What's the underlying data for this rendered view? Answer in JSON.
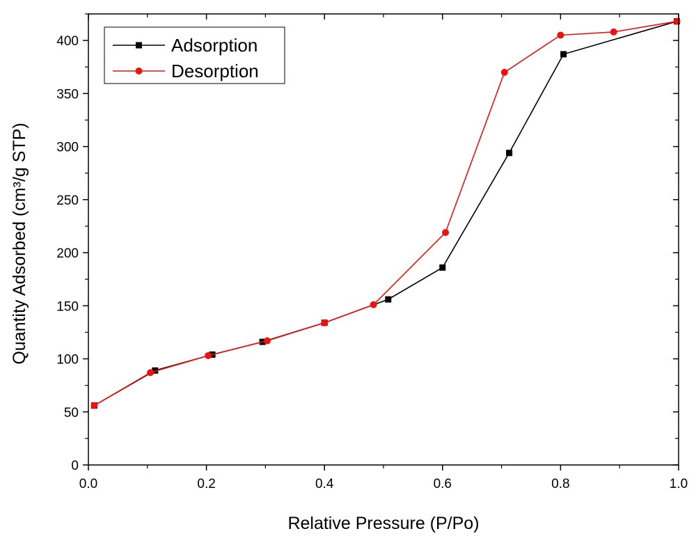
{
  "chart_data": {
    "type": "line",
    "title": "",
    "xlabel": "Relative Pressure (P/Po)",
    "ylabel": "Quantity Adsorbed (cm³/g STP)",
    "xlim": [
      0.0,
      1.0
    ],
    "ylim": [
      0,
      425
    ],
    "xticks": [
      "0.0",
      "0.2",
      "0.4",
      "0.6",
      "0.8",
      "1.0"
    ],
    "yticks": [
      "0",
      "50",
      "100",
      "150",
      "200",
      "250",
      "300",
      "350",
      "400"
    ],
    "grid": false,
    "legend_position": "top-left",
    "series": [
      {
        "name": "Adsorption",
        "color": "#000000",
        "marker": "square",
        "x": [
          0.01,
          0.113,
          0.21,
          0.295,
          0.4,
          0.508,
          0.6,
          0.713,
          0.805,
          0.997
        ],
        "y": [
          56,
          89,
          104,
          116,
          134,
          156,
          186,
          294,
          387,
          418
        ]
      },
      {
        "name": "Desorption",
        "color": "#ee1111",
        "marker": "circle",
        "x": [
          0.01,
          0.105,
          0.203,
          0.303,
          0.4,
          0.483,
          0.605,
          0.705,
          0.8,
          0.89,
          0.997
        ],
        "y": [
          56,
          87,
          103,
          117,
          134,
          151,
          219,
          370,
          405,
          408,
          418
        ]
      }
    ]
  }
}
